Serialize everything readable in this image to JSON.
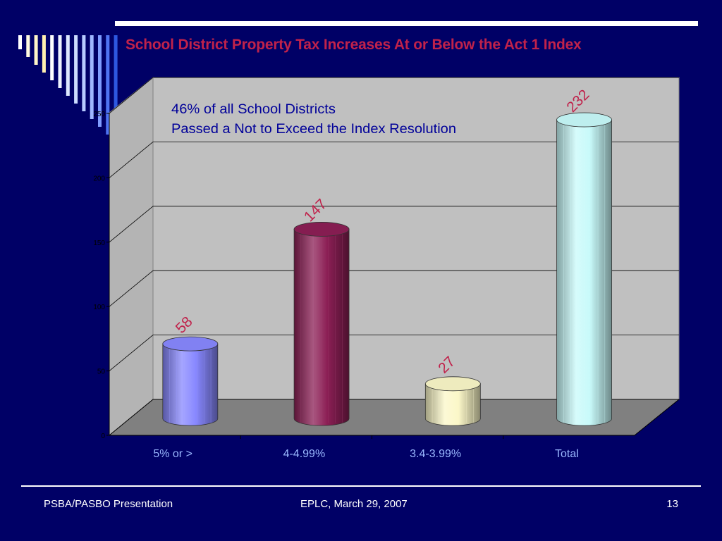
{
  "slide": {
    "title": "School District Property Tax Increases At or Below the Act 1 Index",
    "footer_left": "PSBA/PASBO Presentation",
    "footer_center": "EPLC, March 29, 2007",
    "page_number": "13"
  },
  "colors": {
    "background": "#000066",
    "title": "#c0224b",
    "data_label": "#c0224b",
    "category_label": "#9ab8ff",
    "annotation": "#000099"
  },
  "chart_data": {
    "type": "bar",
    "style": "3d-cylinder",
    "categories": [
      "5% or >",
      "4-4.99%",
      "3.4-3.99%",
      "Total"
    ],
    "values": [
      58,
      147,
      27,
      232
    ],
    "data_labels": [
      "58",
      "147",
      "27",
      "232"
    ],
    "bar_colors": [
      "#8888ff",
      "#8c1f55",
      "#fbf7c8",
      "#c8fafa"
    ],
    "ylim": [
      0,
      250
    ],
    "y_ticks": [
      "0",
      "50",
      "100",
      "150",
      "200",
      "250"
    ],
    "grid": true,
    "legend": false,
    "annotation": [
      "46% of all School Districts",
      "Passed a Not to Exceed the Index Resolution"
    ]
  }
}
